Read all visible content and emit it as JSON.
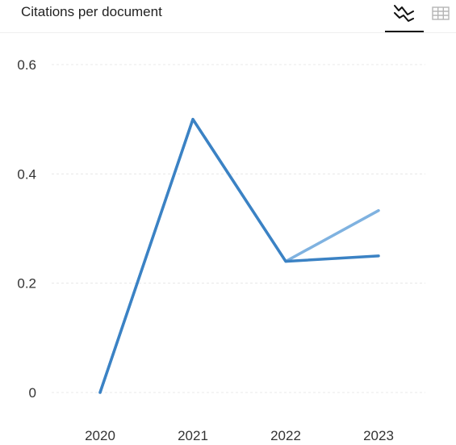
{
  "header": {
    "title": "Citations per document",
    "line_view_icon": "line-chart-icon",
    "table_view_icon": "table-grid-icon",
    "active_view": "line"
  },
  "colors": {
    "series_primary": "#3b82c4",
    "series_secondary": "#7fb2e0",
    "grid": "#e8e8e8",
    "axis_text": "#333333"
  },
  "chart_data": {
    "type": "line",
    "title": "Citations per document",
    "x": [
      "2020",
      "2021",
      "2022",
      "2023"
    ],
    "ylim": [
      0,
      0.6
    ],
    "yticks": [
      0,
      0.2,
      0.4,
      0.6
    ],
    "ytick_labels": [
      "0",
      "0.2",
      "0.4",
      "0.6"
    ],
    "grid": true,
    "legend": "none",
    "series": [
      {
        "values": [
          0,
          0.5,
          0.24,
          0.333
        ],
        "color": "#7fb2e0"
      },
      {
        "values": [
          0,
          0.5,
          0.24,
          0.25
        ],
        "color": "#3b82c4"
      }
    ]
  }
}
